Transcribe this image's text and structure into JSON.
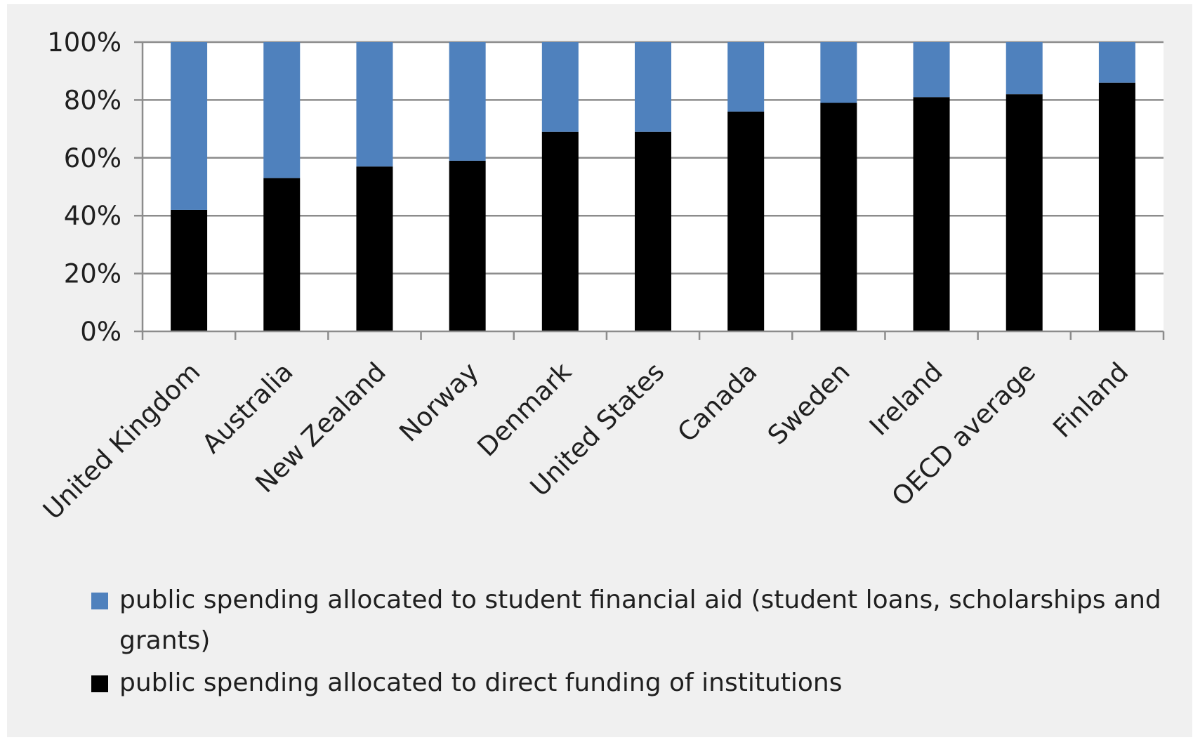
{
  "chart_data": {
    "type": "bar",
    "stacked": true,
    "categories": [
      "United Kingdom",
      "Australia",
      "New Zealand",
      "Norway",
      "Denmark",
      "United States",
      "Canada",
      "Sweden",
      "Ireland",
      "OECD average",
      "Finland"
    ],
    "series": [
      {
        "name": "public spending allocated to direct funding of institutions",
        "color": "#000000",
        "values": [
          42,
          53,
          57,
          59,
          69,
          69,
          76,
          79,
          81,
          82,
          86
        ]
      },
      {
        "name": "public spending allocated to student financial aid (student loans, scholarships and grants)",
        "color": "#4f81bd",
        "values": [
          58,
          47,
          43,
          41,
          31,
          31,
          24,
          21,
          19,
          18,
          14
        ]
      }
    ],
    "y_ticks": [
      "0%",
      "20%",
      "40%",
      "60%",
      "80%",
      "100%"
    ],
    "ylim": [
      0,
      100
    ],
    "grid": true,
    "legend_position": "bottom"
  }
}
